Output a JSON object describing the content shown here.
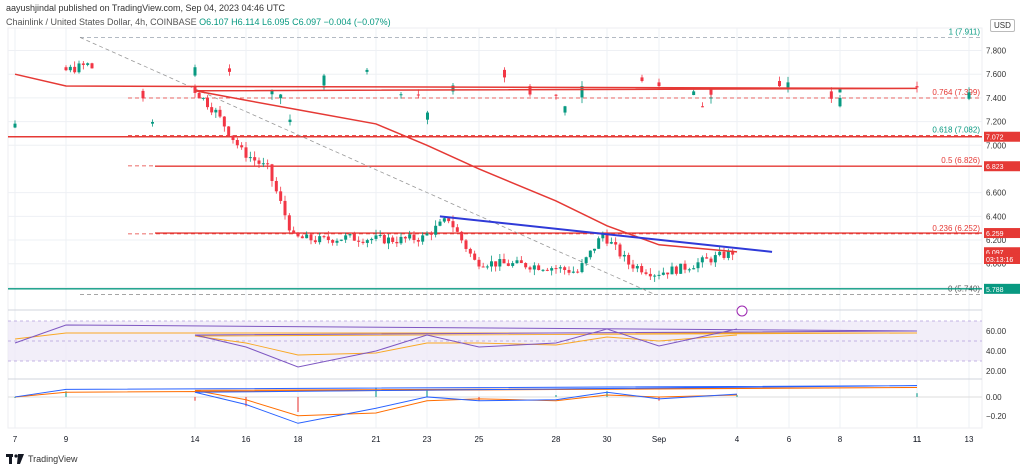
{
  "header": {
    "publisher_line": "aayushjindal published on TradingView.com, Sep 04, 2023 04:46 UTC",
    "symbol_line": "Chainlink / United States Dollar, 4h, COINBASE",
    "ohlc": {
      "O": "O6.107",
      "H": "H6.114",
      "L": "L6.095",
      "C": "C6.097",
      "change": "−0.004 (−0.07%)"
    },
    "currency": "USD"
  },
  "footer": {
    "brand": "TradingView"
  },
  "colors": {
    "up": "#089981",
    "down": "#f23645",
    "ma": "#e53935",
    "trend": "#2f3ad8",
    "rsi": "#7e57c2",
    "fib": "#e53935"
  },
  "chart_data": [
    {
      "type": "line",
      "title": "Chainlink / United States Dollar, 4h, COINBASE",
      "ylim": [
        5.66,
        7.99
      ],
      "x_ticks": [
        "7",
        "9",
        "11",
        "14",
        "16",
        "18",
        "21",
        "23",
        "25",
        "28",
        "30",
        "Sep",
        "4",
        "6",
        "8",
        "11",
        "13"
      ],
      "y_ticks": [
        "7.800",
        "7.600",
        "7.400",
        "7.200",
        "7.000",
        "6.600",
        "6.400",
        "6.200",
        "6.000",
        "5.800"
      ],
      "series": [
        {
          "name": "Close",
          "x": [
            "7",
            "8",
            "9",
            "10",
            "11",
            "12",
            "13",
            "14",
            "15",
            "16",
            "17",
            "18",
            "19",
            "20",
            "21",
            "22",
            "23",
            "24",
            "25",
            "26",
            "27",
            "28",
            "29",
            "30",
            "31",
            "Sep",
            "2",
            "3",
            "4"
          ],
          "values": [
            7.15,
            7.35,
            7.62,
            7.68,
            7.52,
            7.44,
            7.42,
            7.5,
            7.28,
            6.95,
            6.8,
            6.22,
            6.2,
            6.22,
            6.21,
            6.2,
            6.22,
            6.38,
            6.02,
            6.0,
            5.99,
            5.97,
            5.93,
            6.25,
            6.0,
            5.92,
            5.96,
            6.03,
            6.097
          ]
        },
        {
          "name": "Moving Average",
          "x": [
            "7",
            "9",
            "11",
            "14",
            "16",
            "18",
            "21",
            "23",
            "25",
            "28",
            "30",
            "Sep",
            "4"
          ],
          "values": [
            7.6,
            7.5,
            7.48,
            7.46,
            7.38,
            7.3,
            7.18,
            7.0,
            6.8,
            6.53,
            6.32,
            6.16,
            6.1
          ]
        }
      ],
      "fib_levels": [
        {
          "label": "1 (7.911)",
          "value": 7.911
        },
        {
          "label": "0.764 (7.399)",
          "value": 7.399
        },
        {
          "label": "0.618 (7.082)",
          "value": 7.082
        },
        {
          "label": "0.5 (6.826)",
          "value": 6.826
        },
        {
          "label": "0.236 (6.252)",
          "value": 6.252
        },
        {
          "label": "0 (5.740)",
          "value": 5.74
        }
      ],
      "price_tags": [
        {
          "label": "7.072",
          "value": 7.072,
          "color": "#e53935"
        },
        {
          "label": "6.823",
          "value": 6.823,
          "color": "#e53935"
        },
        {
          "label": "6.259",
          "value": 6.259,
          "color": "#e53935"
        },
        {
          "label": "6.097",
          "value": 6.097,
          "color": "#e53935"
        },
        {
          "label": "03:13:16",
          "value": 6.04,
          "color": "#e53935"
        },
        {
          "label": "5.788",
          "value": 5.788,
          "color": "#089981"
        }
      ],
      "horizontal_lines": [
        7.072,
        6.823,
        6.259,
        5.788
      ],
      "trend_line": {
        "from": [
          6.4,
          23.5
        ],
        "to": [
          6.1,
          36.4
        ]
      },
      "grid": true
    },
    {
      "type": "line",
      "title": "RSI",
      "ylim": [
        13,
        75
      ],
      "y_ticks": [
        "60.00",
        "40.00",
        "20.00"
      ],
      "band": [
        30,
        70
      ],
      "series": [
        {
          "name": "RSI",
          "x": [
            "7",
            "9",
            "11",
            "14",
            "16",
            "18",
            "21",
            "23",
            "25",
            "28",
            "30",
            "Sep",
            "4"
          ],
          "values": [
            48,
            66,
            60,
            56,
            44,
            24,
            40,
            56,
            44,
            48,
            62,
            45,
            62
          ]
        },
        {
          "name": "RSI MA",
          "x": [
            "7",
            "9",
            "11",
            "14",
            "16",
            "18",
            "21",
            "23",
            "25",
            "28",
            "30",
            "Sep",
            "4"
          ],
          "values": [
            52,
            58,
            58,
            55,
            48,
            36,
            38,
            48,
            48,
            46,
            54,
            50,
            56
          ]
        }
      ]
    },
    {
      "type": "line",
      "title": "MACD",
      "ylim": [
        -0.33,
        0.18
      ],
      "y_ticks": [
        "0.00",
        "−0.20"
      ],
      "series": [
        {
          "name": "MACD",
          "x": [
            "7",
            "9",
            "11",
            "14",
            "16",
            "18",
            "21",
            "23",
            "25",
            "28",
            "30",
            "Sep",
            "4"
          ],
          "values": [
            0.0,
            0.08,
            0.12,
            0.05,
            -0.08,
            -0.28,
            -0.12,
            0.0,
            -0.04,
            -0.03,
            0.05,
            -0.02,
            0.03
          ]
        },
        {
          "name": "Signal",
          "x": [
            "7",
            "9",
            "11",
            "14",
            "16",
            "18",
            "21",
            "23",
            "25",
            "28",
            "30",
            "Sep",
            "4"
          ],
          "values": [
            0.0,
            0.05,
            0.1,
            0.07,
            -0.03,
            -0.2,
            -0.17,
            -0.04,
            -0.02,
            -0.04,
            0.02,
            0.0,
            0.02
          ]
        }
      ]
    }
  ]
}
